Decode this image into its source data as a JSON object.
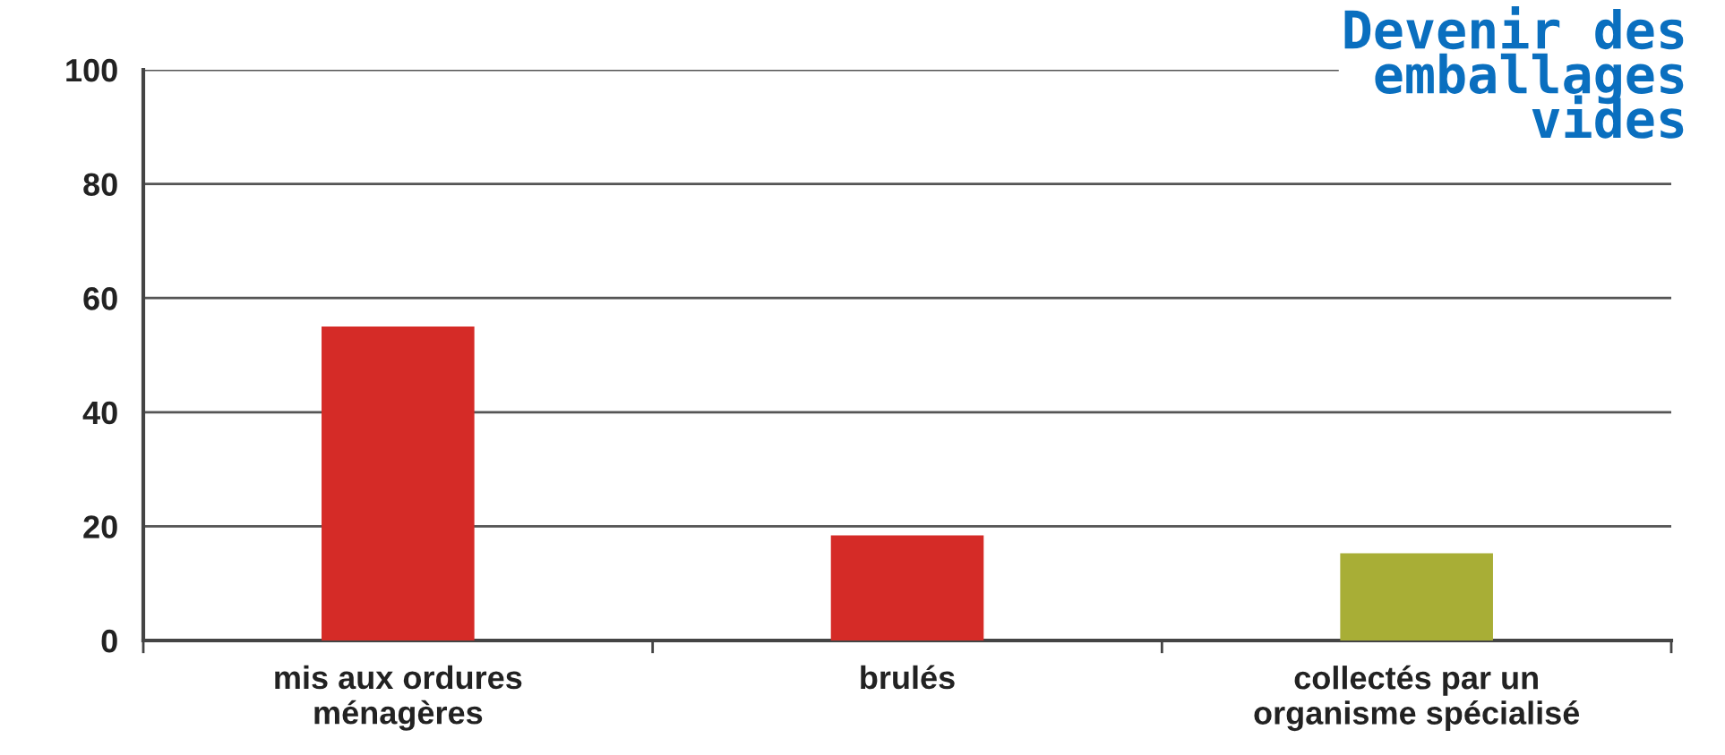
{
  "chart_data": {
    "type": "bar",
    "title": "Devenir des\nemballages\nvides",
    "categories": [
      "mis aux ordures\nménagères",
      "brulés",
      "collectés par un\norganisme spécialisé"
    ],
    "values": [
      55,
      18.4,
      15.3
    ],
    "colors": [
      "#d52b27",
      "#d52b27",
      "#a8ae36"
    ],
    "ylim": [
      0,
      100
    ],
    "yticks": [
      0,
      20,
      40,
      60,
      80,
      100
    ],
    "grid": "y"
  }
}
